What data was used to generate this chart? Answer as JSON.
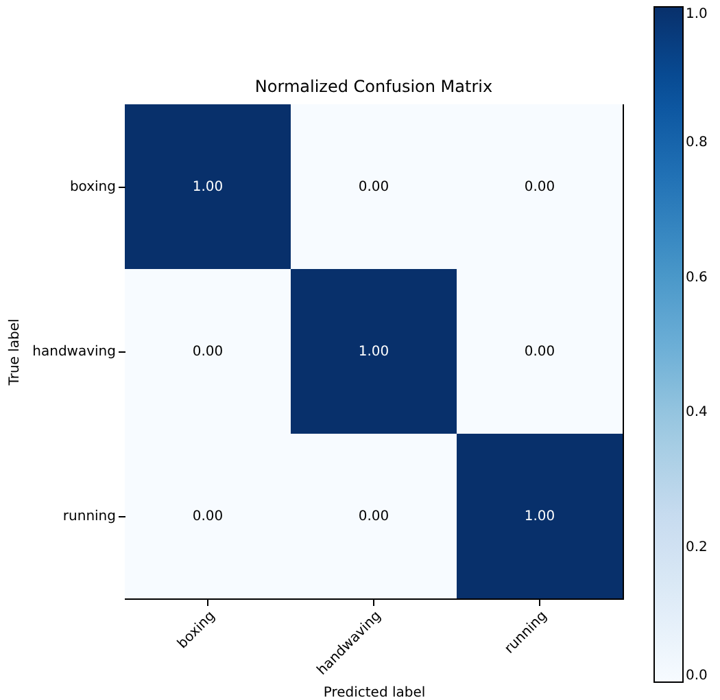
{
  "chart_data": {
    "type": "heatmap",
    "title": "Normalized Confusion Matrix",
    "xlabel": "Predicted label",
    "ylabel": "True label",
    "categories": [
      "boxing",
      "handwaving",
      "running"
    ],
    "y_categories": [
      "boxing",
      "handwaving",
      "running"
    ],
    "cells": [
      [
        1,
        0,
        0
      ],
      [
        0,
        1,
        0
      ],
      [
        0,
        0,
        1
      ]
    ],
    "cell_labels": [
      [
        "1.00",
        "0.00",
        "0.00"
      ],
      [
        "0.00",
        "1.00",
        "0.00"
      ],
      [
        "0.00",
        "0.00",
        "1.00"
      ]
    ],
    "clim": [
      0,
      1
    ],
    "cticks": [
      {
        "value": 0,
        "label": "0.0"
      },
      {
        "value": 0.2,
        "label": "0.2"
      },
      {
        "value": 0.4,
        "label": "0.4"
      },
      {
        "value": 0.6,
        "label": "0.6"
      },
      {
        "value": 0.8,
        "label": "0.8"
      },
      {
        "value": 1,
        "label": "1.0"
      }
    ]
  }
}
